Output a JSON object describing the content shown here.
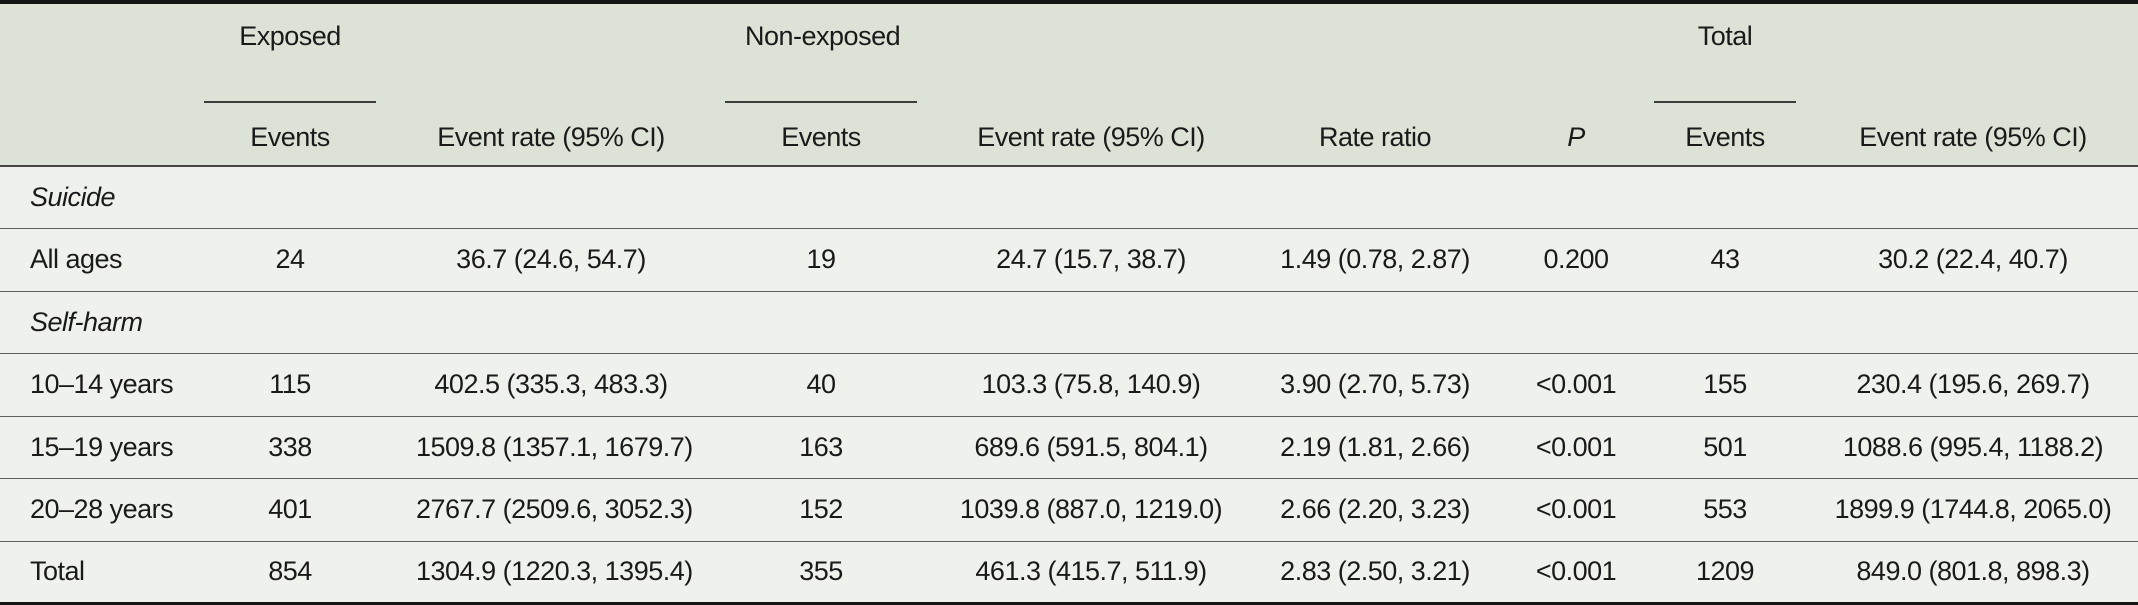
{
  "table": {
    "groups": [
      {
        "label": "Exposed"
      },
      {
        "label": "Non-exposed"
      },
      {
        "label": "Total"
      }
    ],
    "columns": [
      "Events",
      "Event rate (95% CI)",
      "Events",
      "Event rate (95% CI)",
      "Rate ratio",
      "P",
      "Events",
      "Event rate (95% CI)"
    ],
    "rows": [
      {
        "type": "section",
        "label": "Suicide"
      },
      {
        "type": "data",
        "label": "All ages",
        "cells": [
          "24",
          "36.7 (24.6, 54.7)",
          "19",
          "24.7 (15.7, 38.7)",
          "1.49 (0.78, 2.87)",
          "0.200",
          "43",
          "30.2 (22.4, 40.7)"
        ]
      },
      {
        "type": "section",
        "label": "Self-harm"
      },
      {
        "type": "data",
        "label": "10–14 years",
        "cells": [
          "115",
          "402.5 (335.3, 483.3)",
          "40",
          "103.3 (75.8, 140.9)",
          "3.90 (2.70, 5.73)",
          "<0.001",
          "155",
          "230.4 (195.6, 269.7)"
        ]
      },
      {
        "type": "data",
        "label": "15–19 years",
        "cells": [
          "338",
          "1509.8 (1357.1, 1679.7)",
          "163",
          "689.6 (591.5, 804.1)",
          "2.19 (1.81, 2.66)",
          "<0.001",
          "501",
          "1088.6 (995.4, 1188.2)"
        ]
      },
      {
        "type": "data",
        "label": "20–28 years",
        "cells": [
          "401",
          "2767.7 (2509.6, 3052.3)",
          "152",
          "1039.8 (887.0, 1219.0)",
          "2.66 (2.20, 3.23)",
          "<0.001",
          "553",
          "1899.9 (1744.8, 2065.0)"
        ]
      },
      {
        "type": "data",
        "label": "Total",
        "cells": [
          "854",
          "1304.9 (1220.3, 1395.4)",
          "355",
          "461.3 (415.7, 511.9)",
          "2.83 (2.50, 3.21)",
          "<0.001",
          "1209",
          "849.0 (801.8, 898.3)"
        ]
      }
    ],
    "colors": {
      "header_bg": "#dce3d6",
      "body_bg": "#eff2ec",
      "border_dark": "#151515",
      "header_rule": "#454545",
      "row_line": "#5f5f5f",
      "text": "#1a1a1a"
    }
  }
}
